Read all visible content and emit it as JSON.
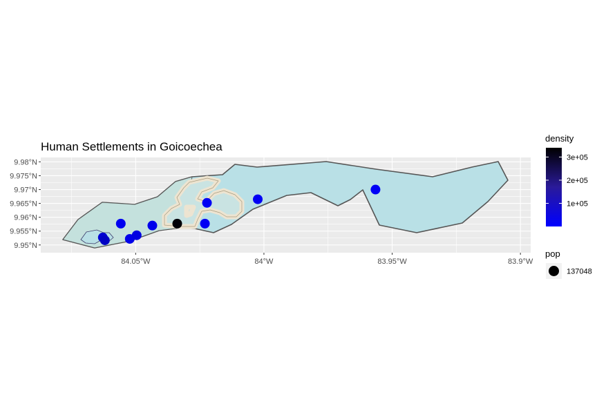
{
  "chart_data": {
    "type": "scatter",
    "title": "Human Settlements in Goicoechea",
    "x_axis": {
      "range": [
        -84.087,
        -83.896
      ],
      "ticks": [
        {
          "value": -84.05,
          "label": "84.05°W"
        },
        {
          "value": -84.0,
          "label": "84°W"
        },
        {
          "value": -83.95,
          "label": "83.95°W"
        },
        {
          "value": -83.9,
          "label": "83.9°W"
        }
      ]
    },
    "y_axis": {
      "range": [
        9.9472,
        9.9816
      ],
      "ticks": [
        {
          "value": 9.95,
          "label": "9.95°N"
        },
        {
          "value": 9.955,
          "label": "9.955°N"
        },
        {
          "value": 9.96,
          "label": "9.96°N"
        },
        {
          "value": 9.965,
          "label": "9.965°N"
        },
        {
          "value": 9.97,
          "label": "9.97°N"
        },
        {
          "value": 9.975,
          "label": "9.975°N"
        },
        {
          "value": 9.98,
          "label": "9.98°N"
        }
      ]
    },
    "grid": true,
    "colors": {
      "panel": "#ebebeb",
      "grid": "#ffffff",
      "district_fill": "#b9e0e6",
      "district_fill_west": "#c6e2dd",
      "district_border": "#555555",
      "urban_fill": "#ede4d1",
      "urban_outline": "#d8cdb3",
      "urban_inner_fill": "#c9e3e2",
      "point_low": "#0000ff",
      "point_high": "#000000"
    },
    "points": [
      {
        "lon": -84.0628,
        "lat": 9.9527,
        "density": 60000
      },
      {
        "lon": -84.062,
        "lat": 9.9517,
        "density": 80000
      },
      {
        "lon": -84.0558,
        "lat": 9.9577,
        "density": 20000
      },
      {
        "lon": -84.0523,
        "lat": 9.9522,
        "density": 30000
      },
      {
        "lon": -84.0496,
        "lat": 9.9535,
        "density": 40000
      },
      {
        "lon": -84.0435,
        "lat": 9.957,
        "density": 25000
      },
      {
        "lon": -84.0338,
        "lat": 9.9577,
        "density": 330000
      },
      {
        "lon": -84.023,
        "lat": 9.9577,
        "density": 15000
      },
      {
        "lon": -84.0222,
        "lat": 9.9652,
        "density": 15000
      },
      {
        "lon": -84.0024,
        "lat": 9.9665,
        "density": 15000
      },
      {
        "lon": -83.9565,
        "lat": 9.97,
        "density": 12000
      }
    ],
    "legend": {
      "placement": "right",
      "density": {
        "title": "density",
        "min": 0,
        "max": 340000,
        "breaks": [
          {
            "value": 100000,
            "label": "1e+05"
          },
          {
            "value": 200000,
            "label": "2e+05"
          },
          {
            "value": 300000,
            "label": "3e+05"
          }
        ]
      },
      "pop": {
        "title": "pop",
        "label": "137048"
      }
    }
  }
}
